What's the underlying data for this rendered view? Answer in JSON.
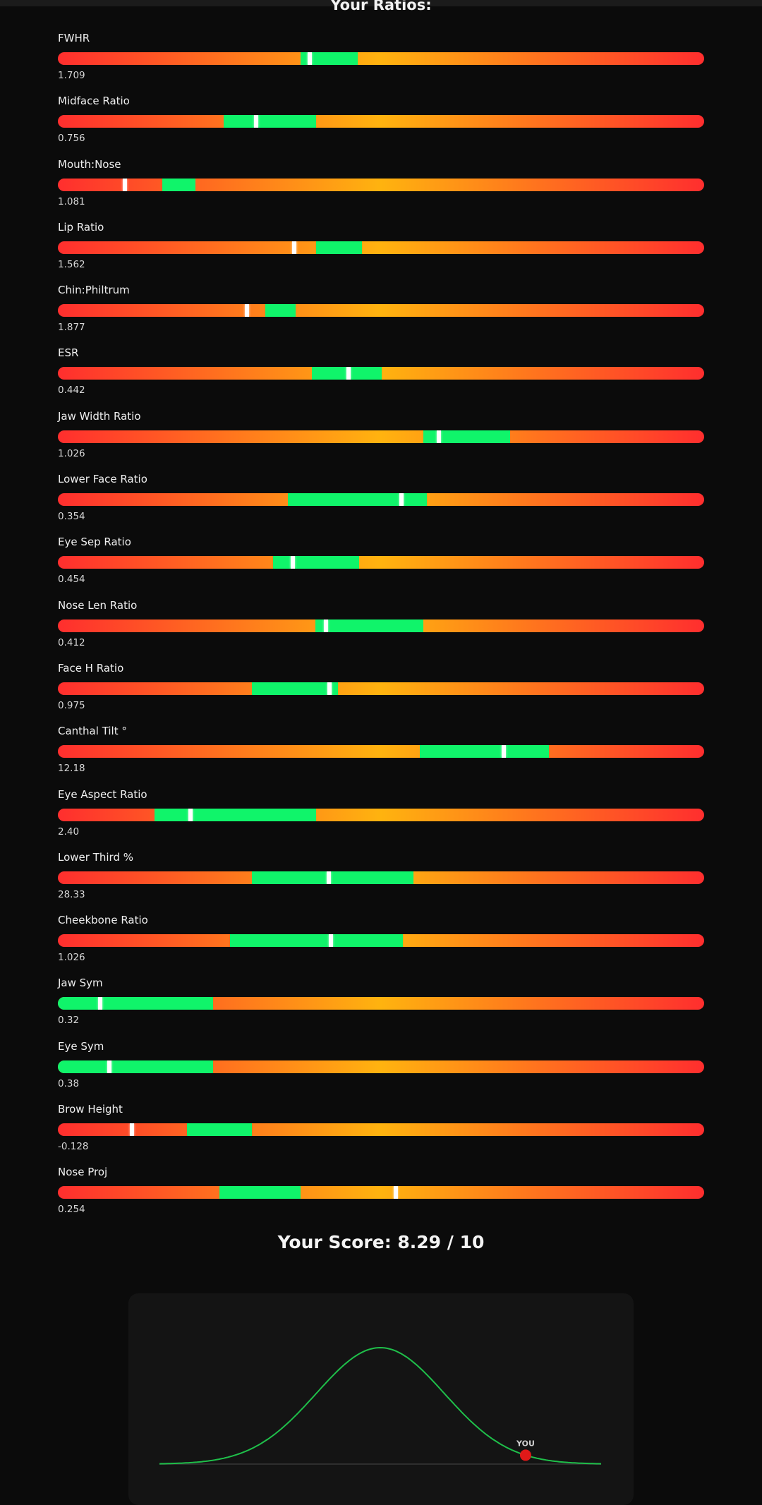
{
  "header": {
    "title": "Your Ratios:"
  },
  "colors": {
    "bad": "#ff2e2e",
    "mid": "#ffb30f",
    "ideal": "#10f46a",
    "marker": "#ffffff",
    "curve": "#1fbf4a",
    "you_dot": "#e01919"
  },
  "ratios": [
    {
      "label": "FWHR",
      "value": "1.709",
      "ideal_range": [
        0.375,
        0.464
      ],
      "marker": 0.39
    },
    {
      "label": "Midface Ratio",
      "value": "0.756",
      "ideal_range": [
        0.257,
        0.4
      ],
      "marker": 0.307
    },
    {
      "label": "Mouth:Nose",
      "value": "1.081",
      "ideal_range": [
        0.162,
        0.213
      ],
      "marker": 0.104
    },
    {
      "label": "Lip Ratio",
      "value": "1.562",
      "ideal_range": [
        0.4,
        0.47
      ],
      "marker": 0.366
    },
    {
      "label": "Chin:Philtrum",
      "value": "1.877",
      "ideal_range": [
        0.321,
        0.368
      ],
      "marker": 0.293
    },
    {
      "label": "ESR",
      "value": "0.442",
      "ideal_range": [
        0.393,
        0.501
      ],
      "marker": 0.45
    },
    {
      "label": "Jaw Width Ratio",
      "value": "1.026",
      "ideal_range": [
        0.566,
        0.7
      ],
      "marker": 0.59
    },
    {
      "label": "Lower Face Ratio",
      "value": "0.354",
      "ideal_range": [
        0.356,
        0.571
      ],
      "marker": 0.532
    },
    {
      "label": "Eye Sep Ratio",
      "value": "0.454",
      "ideal_range": [
        0.333,
        0.466
      ],
      "marker": 0.363
    },
    {
      "label": "Nose Len Ratio",
      "value": "0.412",
      "ideal_range": [
        0.399,
        0.566
      ],
      "marker": 0.415
    },
    {
      "label": "Face H Ratio",
      "value": "0.975",
      "ideal_range": [
        0.3,
        0.433
      ],
      "marker": 0.42
    },
    {
      "label": "Canthal Tilt °",
      "value": "12.18",
      "ideal_range": [
        0.56,
        0.76
      ],
      "marker": 0.69
    },
    {
      "label": "Eye Aspect Ratio",
      "value": "2.40",
      "ideal_range": [
        0.15,
        0.4
      ],
      "marker": 0.205
    },
    {
      "label": "Lower Third %",
      "value": "28.33",
      "ideal_range": [
        0.3,
        0.55
      ],
      "marker": 0.419
    },
    {
      "label": "Cheekbone Ratio",
      "value": "1.026",
      "ideal_range": [
        0.266,
        0.534
      ],
      "marker": 0.422
    },
    {
      "label": "Jaw Sym",
      "value": "0.32",
      "ideal_range": [
        0.0,
        0.24
      ],
      "marker": 0.066
    },
    {
      "label": "Eye Sym",
      "value": "0.38",
      "ideal_range": [
        0.0,
        0.24
      ],
      "marker": 0.08
    },
    {
      "label": "Brow Height",
      "value": "-0.128",
      "ideal_range": [
        0.2,
        0.3
      ],
      "marker": 0.115
    },
    {
      "label": "Nose Proj",
      "value": "0.254",
      "ideal_range": [
        0.25,
        0.375
      ],
      "marker": 0.523
    }
  ],
  "score": {
    "text": "Your Score: 8.29 / 10",
    "value": 8.29,
    "max": 10
  },
  "distribution": {
    "mean": 5,
    "std": 1.45,
    "range": [
      0,
      10
    ],
    "marker_label": "YOU",
    "marker_value": 8.29
  }
}
